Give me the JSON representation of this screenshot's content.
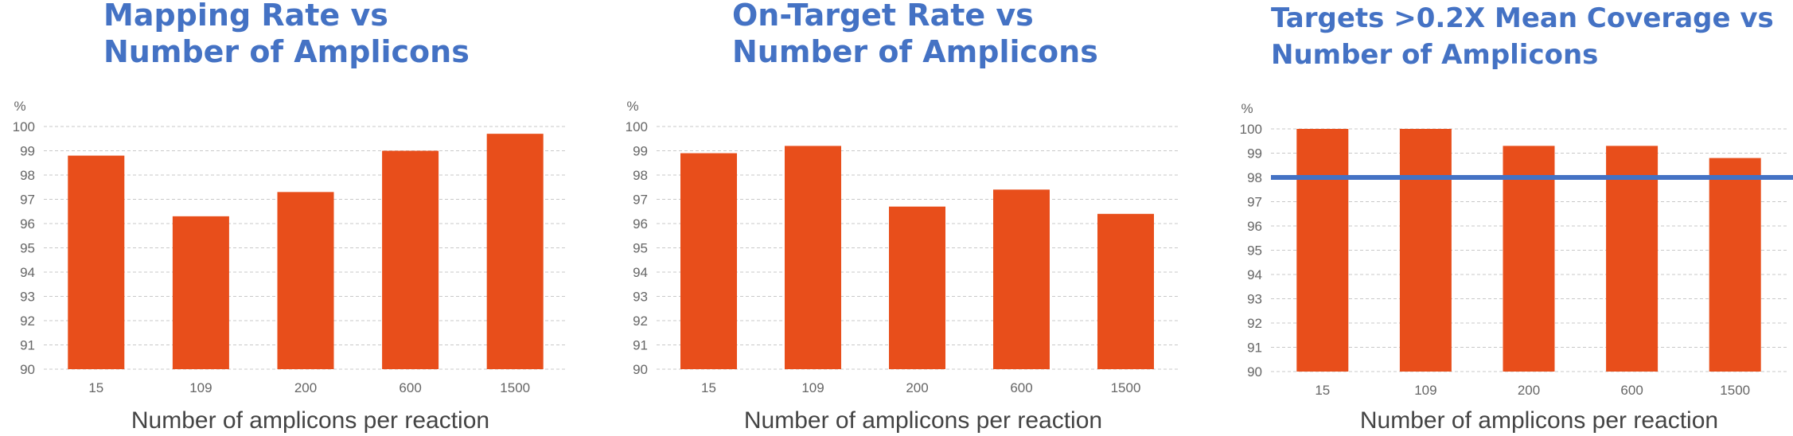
{
  "bar_color": "#e84e1b",
  "reference_line_color": "#4472c4",
  "chart_data": [
    {
      "type": "bar",
      "title": "Mapping Rate vs\nNumber of Amplicons",
      "unit_label": "%",
      "xlabel": "Number of amplicons per reaction",
      "ylim": [
        90,
        100
      ],
      "yticks": [
        90,
        91,
        92,
        93,
        94,
        95,
        96,
        97,
        98,
        99,
        100
      ],
      "grid": true,
      "categories": [
        "15",
        "109",
        "200",
        "600",
        "1500"
      ],
      "values": [
        98.8,
        96.3,
        97.3,
        99.0,
        99.7
      ]
    },
    {
      "type": "bar",
      "title": "On-Target Rate vs\nNumber of Amplicons",
      "unit_label": "%",
      "xlabel": "Number of amplicons per reaction",
      "ylim": [
        90,
        100
      ],
      "yticks": [
        90,
        91,
        92,
        93,
        94,
        95,
        96,
        97,
        98,
        99,
        100
      ],
      "grid": true,
      "categories": [
        "15",
        "109",
        "200",
        "600",
        "1500"
      ],
      "values": [
        98.9,
        99.2,
        96.7,
        97.4,
        96.4
      ]
    },
    {
      "type": "bar",
      "title": "Targets >0.2X Mean Coverage vs\nNumber of Amplicons",
      "unit_label": "%",
      "xlabel": "Number of amplicons per reaction",
      "ylim": [
        90,
        100
      ],
      "yticks": [
        90,
        91,
        92,
        93,
        94,
        95,
        96,
        97,
        98,
        99,
        100
      ],
      "grid": true,
      "categories": [
        "15",
        "109",
        "200",
        "600",
        "1500"
      ],
      "values": [
        100.0,
        100.0,
        99.3,
        99.3,
        98.8
      ],
      "reference_line": 98
    }
  ]
}
